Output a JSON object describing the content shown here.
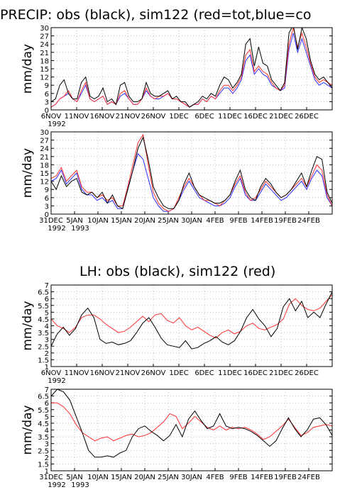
{
  "figure": {
    "title_precip": "PRECIP: obs (black), sim122 (red=tot,blue=co",
    "title_lh": "LH: obs (black), sim122 (red)"
  },
  "colors": {
    "obs": "#000000",
    "sim": "#ff3030",
    "conv": "#3030ff",
    "grid": "#999999",
    "frame": "#000000"
  },
  "chart_data": [
    {
      "type": "line",
      "ylabel": "mm/day",
      "ylim": [
        0,
        30
      ],
      "yticks": [
        "0",
        "3",
        "6",
        "9",
        "12",
        "15",
        "18",
        "21",
        "24",
        "27",
        "30"
      ],
      "xticks": [
        "6NOV",
        "11NOV",
        "16NOV",
        "21NOV",
        "26NOV",
        "1DEC",
        "6DEC",
        "11DEC",
        "16DEC",
        "21DEC",
        "26DEC"
      ],
      "xyear": "1992",
      "grid": true,
      "series": [
        {
          "color": "obs",
          "values": [
            3,
            4,
            9,
            11,
            6,
            4,
            4,
            10,
            12,
            5,
            4,
            5,
            8,
            3,
            4,
            2,
            9,
            10,
            5,
            3,
            3,
            4,
            10,
            6,
            5,
            5,
            6,
            7,
            4,
            5,
            3,
            3,
            1,
            2,
            3,
            5,
            4,
            6,
            5,
            9,
            12,
            11,
            8,
            10,
            13,
            24,
            26,
            16,
            23,
            17,
            16,
            11,
            9,
            7,
            10,
            28,
            31,
            22,
            30,
            26,
            18,
            13,
            11,
            12,
            10,
            8
          ]
        },
        {
          "color": "sim",
          "values": [
            1,
            2,
            4,
            5,
            7,
            4,
            3,
            7,
            10,
            4,
            3,
            4,
            5,
            2,
            3,
            2,
            6,
            7,
            4,
            2,
            2,
            4,
            8,
            5,
            4,
            5,
            5,
            6,
            4,
            4,
            3,
            2,
            1,
            2,
            2,
            4,
            3,
            5,
            4,
            7,
            9,
            9,
            7,
            9,
            12,
            20,
            22,
            14,
            16,
            14,
            13,
            10,
            8,
            7,
            9,
            24,
            30,
            23,
            28,
            23,
            17,
            12,
            10,
            11,
            10,
            9
          ]
        },
        {
          "color": "conv",
          "values": [
            1,
            2,
            4,
            5,
            6,
            4,
            3,
            6,
            9,
            4,
            3,
            4,
            5,
            2,
            3,
            2,
            5,
            6,
            4,
            2,
            2,
            4,
            7,
            5,
            4,
            4,
            5,
            6,
            4,
            4,
            3,
            2,
            1,
            2,
            2,
            4,
            3,
            5,
            4,
            6,
            8,
            8,
            6,
            8,
            11,
            18,
            20,
            13,
            15,
            13,
            12,
            9,
            8,
            7,
            8,
            22,
            28,
            21,
            26,
            21,
            16,
            11,
            9,
            10,
            9,
            8
          ]
        }
      ]
    },
    {
      "type": "line",
      "ylabel": "mm/day",
      "ylim": [
        0,
        30
      ],
      "yticks": [
        "0",
        "3",
        "6",
        "9",
        "12",
        "15",
        "18",
        "21",
        "24",
        "27",
        "30"
      ],
      "xticks": [
        "31DEC",
        "5JAN",
        "10JAN",
        "15JAN",
        "20JAN",
        "25JAN",
        "30JAN",
        "4FEB",
        "9FEB",
        "14FEB",
        "19FEB",
        "24FEB"
      ],
      "xyear": "1992",
      "xyear2": "1993",
      "grid": true,
      "series": [
        {
          "color": "obs",
          "values": [
            12,
            9,
            14,
            10,
            12,
            13,
            8,
            7,
            8,
            6,
            8,
            4,
            7,
            3,
            2,
            9,
            16,
            24,
            28,
            20,
            10,
            6,
            3,
            2,
            2,
            5,
            11,
            15,
            10,
            7,
            6,
            5,
            4,
            4,
            5,
            7,
            12,
            16,
            9,
            6,
            5,
            10,
            13,
            11,
            8,
            6,
            7,
            9,
            12,
            15,
            10,
            16,
            21,
            20,
            8,
            4
          ]
        },
        {
          "color": "sim",
          "values": [
            13,
            14,
            17,
            12,
            14,
            16,
            10,
            8,
            8,
            6,
            7,
            5,
            6,
            3,
            3,
            10,
            18,
            26,
            29,
            18,
            8,
            4,
            2,
            1,
            2,
            6,
            10,
            13,
            10,
            7,
            5,
            5,
            4,
            3,
            5,
            7,
            11,
            14,
            8,
            5,
            6,
            9,
            12,
            10,
            8,
            6,
            7,
            9,
            11,
            13,
            10,
            14,
            18,
            16,
            7,
            3
          ]
        },
        {
          "color": "conv",
          "values": [
            12,
            13,
            16,
            11,
            13,
            15,
            9,
            7,
            7,
            5,
            6,
            4,
            5,
            2,
            2,
            9,
            16,
            22,
            20,
            13,
            6,
            3,
            1,
            1,
            2,
            5,
            9,
            12,
            9,
            6,
            5,
            4,
            3,
            3,
            4,
            6,
            10,
            13,
            7,
            5,
            5,
            8,
            11,
            9,
            7,
            5,
            6,
            8,
            10,
            12,
            9,
            13,
            16,
            14,
            6,
            3
          ]
        }
      ]
    },
    {
      "type": "line",
      "ylabel": "mm/day",
      "ylim": [
        1,
        7
      ],
      "yticks": [
        "1",
        "1.5",
        "2",
        "2.5",
        "3",
        "3.5",
        "4",
        "4.5",
        "5",
        "5.5",
        "6",
        "6.5",
        "7"
      ],
      "xticks": [
        "6NOV",
        "11NOV",
        "16NOV",
        "21NOV",
        "26NOV",
        "1DEC",
        "6DEC",
        "11DEC",
        "16DEC",
        "21DEC",
        "26DEC"
      ],
      "xyear": "1992",
      "grid": true,
      "series": [
        {
          "color": "obs",
          "values": [
            2.5,
            3.4,
            3.9,
            3.3,
            3.8,
            4.8,
            5.3,
            4.6,
            3.0,
            2.7,
            2.8,
            2.6,
            2.7,
            2.9,
            3.5,
            4.2,
            4.6,
            3.9,
            3.1,
            2.6,
            2.5,
            2.4,
            2.9,
            2.3,
            2.4,
            2.7,
            2.9,
            3.2,
            2.8,
            2.6,
            2.9,
            3.6,
            4.6,
            5.2,
            4.5,
            4.0,
            3.2,
            3.8,
            5.4,
            6.0,
            5.1,
            5.8,
            4.6,
            5.0,
            4.6,
            5.6,
            6.5
          ]
        },
        {
          "color": "sim",
          "values": [
            4.5,
            4.0,
            3.8,
            3.5,
            3.9,
            4.6,
            4.8,
            4.8,
            4.5,
            4.1,
            3.8,
            3.5,
            3.6,
            3.9,
            4.3,
            4.7,
            4.3,
            4.8,
            4.9,
            4.4,
            4.2,
            4.6,
            4.0,
            3.7,
            3.9,
            3.6,
            3.3,
            3.1,
            3.5,
            3.7,
            3.4,
            3.6,
            4.0,
            4.2,
            3.8,
            3.7,
            3.9,
            4.1,
            4.5,
            5.6,
            6.0,
            5.5,
            5.2,
            5.1,
            5.3,
            5.8,
            6.3
          ]
        }
      ]
    },
    {
      "type": "line",
      "ylabel": "mm/day",
      "ylim": [
        1,
        7
      ],
      "yticks": [
        "1",
        "1.5",
        "2",
        "2.5",
        "3",
        "3.5",
        "4",
        "4.5",
        "5",
        "5.5",
        "6",
        "6.5",
        "7"
      ],
      "xticks": [
        "31DEC",
        "5JAN",
        "10JAN",
        "15JAN",
        "20JAN",
        "25JAN",
        "30JAN",
        "4FEB",
        "9FEB",
        "14FEB",
        "19FEB",
        "24FEB"
      ],
      "xyear": "1992",
      "xyear2": "1993",
      "grid": true,
      "series": [
        {
          "color": "obs",
          "values": [
            6.5,
            7.0,
            6.8,
            6.2,
            5.0,
            3.8,
            2.5,
            2.0,
            2.0,
            2.1,
            2.0,
            2.3,
            2.5,
            3.5,
            4.1,
            4.3,
            3.9,
            3.6,
            3.2,
            3.6,
            4.4,
            3.5,
            4.8,
            5.4,
            4.7,
            4.1,
            4.3,
            5.2,
            4.3,
            4.1,
            4.2,
            4.1,
            3.9,
            3.6,
            3.2,
            2.8,
            3.2,
            4.1,
            4.9,
            4.1,
            3.5,
            4.0,
            4.8,
            4.9,
            4.4,
            3.6
          ]
        },
        {
          "color": "sim",
          "values": [
            6.0,
            6.0,
            5.7,
            5.2,
            4.4,
            3.8,
            3.5,
            3.2,
            3.4,
            3.5,
            3.2,
            3.4,
            3.6,
            3.7,
            3.5,
            3.6,
            3.8,
            4.2,
            4.6,
            5.2,
            5.0,
            4.1,
            4.5,
            5.0,
            4.6,
            4.2,
            4.0,
            4.3,
            4.0,
            4.2,
            4.1,
            4.2,
            4.0,
            3.7,
            3.3,
            3.5,
            3.9,
            4.3,
            4.8,
            4.2,
            3.6,
            3.8,
            4.2,
            4.3,
            4.4,
            4.3
          ]
        }
      ]
    }
  ]
}
